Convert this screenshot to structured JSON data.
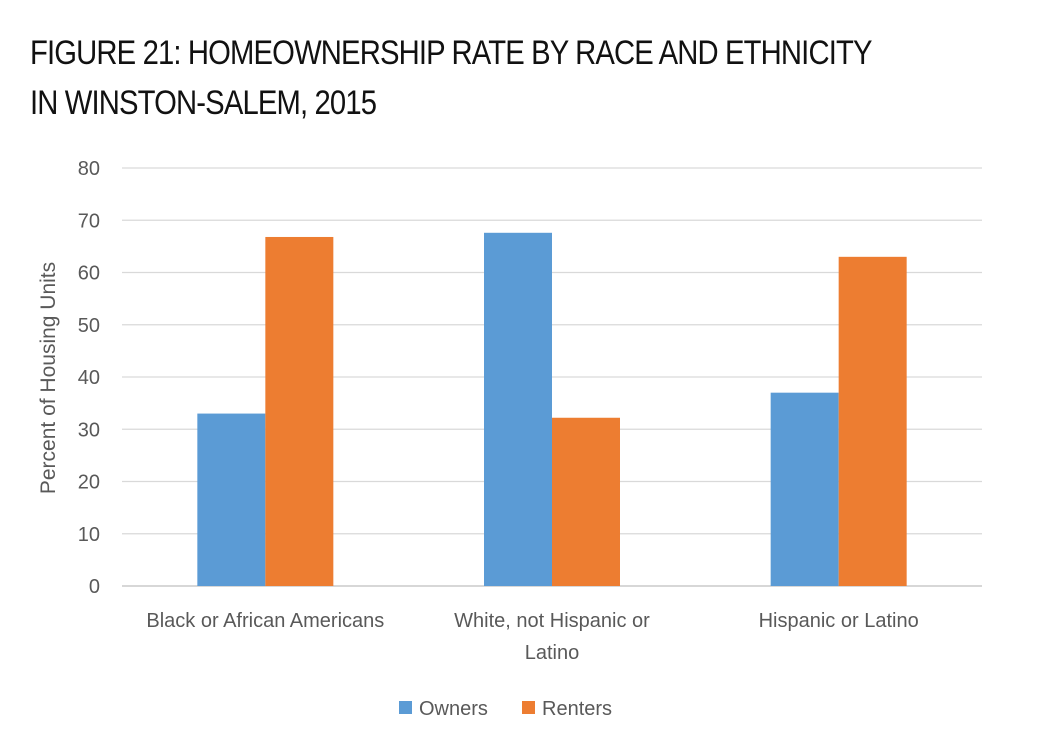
{
  "title_lines": [
    "FIGURE 21: HOMEOWNERSHIP RATE BY RACE AND ETHNICITY",
    "IN WINSTON-SALEM, 2015"
  ],
  "chart_data": {
    "type": "bar",
    "title": "FIGURE 21: HOMEOWNERSHIP RATE BY RACE AND ETHNICITY IN WINSTON-SALEM, 2015",
    "categories": [
      "Black or African Americans",
      "White, not Hispanic or Latino",
      "Hispanic or Latino"
    ],
    "category_label_lines": [
      [
        "Black or African Americans"
      ],
      [
        "White, not Hispanic or",
        "Latino"
      ],
      [
        "Hispanic or Latino"
      ]
    ],
    "series": [
      {
        "name": "Owners",
        "color": "#5B9BD5",
        "values": [
          33.0,
          67.6,
          37.0
        ]
      },
      {
        "name": "Renters",
        "color": "#ED7D31",
        "values": [
          66.8,
          32.2,
          63.0
        ]
      }
    ],
    "xlabel": "",
    "ylabel": "Percent of Housing Units",
    "ylim": [
      0,
      80
    ],
    "yticks": [
      0,
      10,
      20,
      30,
      40,
      50,
      60,
      70,
      80
    ],
    "grid": true,
    "legend_position": "bottom"
  }
}
